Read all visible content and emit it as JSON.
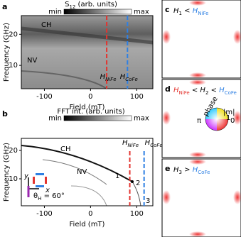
{
  "panels": {
    "a": {
      "label": "a",
      "colorbar": {
        "title": "S",
        "title_sub": "12",
        "title_rest": " (arb. units)",
        "min": "min",
        "max": "max"
      },
      "x_label": "Field (mT)",
      "y_label": "Frequency (GHz)",
      "xlim": [
        -150,
        135
      ],
      "ylim": [
        2.5,
        26
      ],
      "xticks": [
        -100,
        0,
        100
      ],
      "yticks": [
        10,
        20
      ],
      "annotations": {
        "ch": "CH",
        "nv": "NV"
      },
      "field_lines": [
        {
          "symbol": "H",
          "sub": "NiFe",
          "value": 35,
          "color": "#e3342f"
        },
        {
          "symbol": "H",
          "sub": "CoFe",
          "value": 80,
          "color": "#2f80e3"
        }
      ]
    },
    "b": {
      "label": "b",
      "colorbar": {
        "title": "FFT int. (arb. units)",
        "min": "min",
        "max": "max"
      },
      "x_label": "Field (mT)",
      "y_label": "Frequency (GHz)",
      "xlim": [
        -150,
        135
      ],
      "ylim": [
        0.5,
        24.25
      ],
      "xticks": [
        -100,
        0,
        100
      ],
      "yticks": [
        10,
        20
      ],
      "annotations": {
        "ch": "CH",
        "nv": "NV",
        "mode_1": "1",
        "mode_2": "2",
        "mode_3": "3"
      },
      "inset": {
        "y": "y",
        "x": "x",
        "theta": "θ",
        "theta_sub": "H",
        "theta_rest": " = 60°"
      },
      "field_lines": [
        {
          "symbol": "H",
          "sub": "NiFe",
          "value": 85,
          "color": "#e3342f"
        },
        {
          "symbol": "H",
          "sub": "CoFe",
          "value": 116,
          "color": "#2f80e3"
        }
      ]
    },
    "c": {
      "label": "c",
      "title": {
        "h": "H",
        "h_sub": "1",
        "rel": " < ",
        "ref": "H",
        "ref_sub": "NiFe"
      }
    },
    "d": {
      "label": "d",
      "title": {
        "ref1": "H",
        "ref1_sub": "NiFe",
        "rel1": " < ",
        "h": "H",
        "h_sub": "2",
        "rel2": " < ",
        "ref2": "H",
        "ref2_sub": "CoFe"
      },
      "wheel": {
        "phase": "phase",
        "m": "|m|",
        "one": "1",
        "pi": "π",
        "zero": "0"
      }
    },
    "e": {
      "label": "e",
      "title": {
        "h": "H",
        "h_sub": "3",
        "rel": " > ",
        "ref": "H",
        "ref_sub": "CoFe"
      }
    }
  }
}
